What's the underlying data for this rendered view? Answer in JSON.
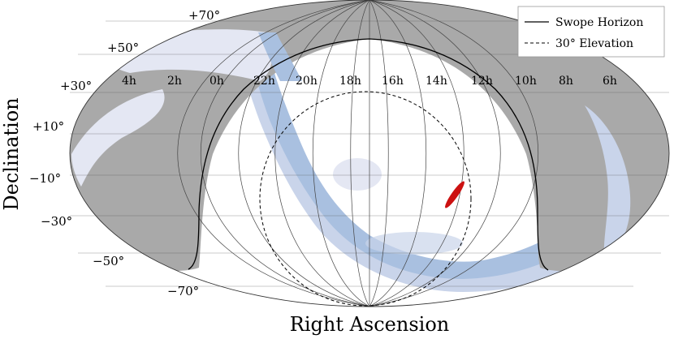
{
  "chart_data": {
    "type": "map",
    "projection": "Mollweide (equatorial)",
    "xlabel": "Right Ascension",
    "ylabel": "Declination",
    "dec_ticks": [
      {
        "value": 70,
        "label": "+70°"
      },
      {
        "value": 50,
        "label": "+50°"
      },
      {
        "value": 30,
        "label": "+30°"
      },
      {
        "value": 10,
        "label": "+10°"
      },
      {
        "value": -10,
        "label": "−10°"
      },
      {
        "value": -30,
        "label": "−30°"
      },
      {
        "value": -50,
        "label": "−50°"
      },
      {
        "value": -70,
        "label": "−70°"
      }
    ],
    "ra_ticks": [
      {
        "value": 4,
        "label": "4h"
      },
      {
        "value": 2,
        "label": "2h"
      },
      {
        "value": 0,
        "label": "0h"
      },
      {
        "value": 22,
        "label": "22h"
      },
      {
        "value": 20,
        "label": "20h"
      },
      {
        "value": 18,
        "label": "18h"
      },
      {
        "value": 16,
        "label": "16h"
      },
      {
        "value": 14,
        "label": "14h"
      },
      {
        "value": 12,
        "label": "12h"
      },
      {
        "value": 10,
        "label": "10h"
      },
      {
        "value": 8,
        "label": "8h"
      },
      {
        "value": 6,
        "label": "6h"
      }
    ],
    "legend": {
      "placement": "top-right",
      "entries": [
        {
          "label": "Swope Horizon",
          "style": "solid"
        },
        {
          "label": "30° Elevation",
          "style": "dashed"
        }
      ]
    },
    "grid": true,
    "colors": {
      "unobservable_region": "#a9a9a9",
      "dust_light": "#e4e7f3",
      "dust_mid": "#c9d4ea",
      "dust_dark": "#a9c0e0",
      "localization": "#cc1111"
    }
  }
}
